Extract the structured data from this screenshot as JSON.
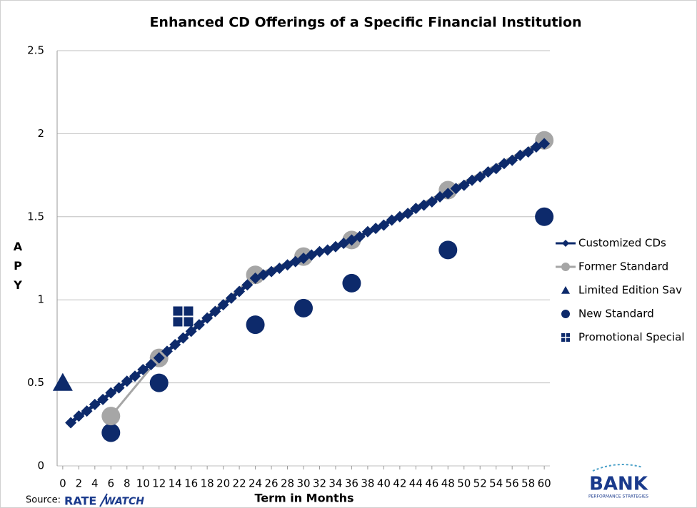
{
  "chart_data": {
    "type": "line",
    "title": "Enhanced CD Offerings of a Specific Financial Institution",
    "x_label": "Term in Months",
    "y_label": "APY",
    "source_label": "Source:",
    "source_logo": [
      "RATE",
      "WATCH"
    ],
    "brand_logo": [
      "BANK",
      "PERFORMANCE STRATEGIES"
    ],
    "xlim": [
      -0.7,
      60.7
    ],
    "xticks": [
      0,
      2,
      4,
      6,
      8,
      10,
      12,
      14,
      16,
      18,
      20,
      22,
      24,
      26,
      28,
      30,
      32,
      34,
      36,
      38,
      40,
      42,
      44,
      46,
      48,
      50,
      52,
      54,
      56,
      58,
      60
    ],
    "ylim": [
      0,
      2.5
    ],
    "yticks": [
      0,
      0.5,
      1,
      1.5,
      2,
      2.5
    ],
    "grid": true,
    "legend": "right",
    "series": [
      {
        "name": "Customized CDs",
        "color": "#0d2a6b",
        "marker": "diamond",
        "line": true,
        "x": [
          1,
          2,
          3,
          4,
          5,
          6,
          7,
          8,
          9,
          10,
          11,
          12,
          13,
          14,
          15,
          16,
          17,
          18,
          19,
          20,
          21,
          22,
          23,
          24,
          25,
          26,
          27,
          28,
          29,
          30,
          31,
          32,
          33,
          34,
          35,
          36,
          37,
          38,
          39,
          40,
          41,
          42,
          43,
          44,
          45,
          46,
          47,
          48,
          49,
          50,
          51,
          52,
          53,
          54,
          55,
          56,
          57,
          58,
          59,
          60
        ],
        "values": [
          0.26,
          0.3,
          0.33,
          0.37,
          0.4,
          0.44,
          0.47,
          0.51,
          0.54,
          0.58,
          0.61,
          0.65,
          0.69,
          0.73,
          0.77,
          0.81,
          0.85,
          0.89,
          0.93,
          0.97,
          1.01,
          1.05,
          1.09,
          1.13,
          1.15,
          1.17,
          1.19,
          1.21,
          1.23,
          1.25,
          1.27,
          1.29,
          1.3,
          1.32,
          1.34,
          1.36,
          1.38,
          1.41,
          1.43,
          1.45,
          1.48,
          1.5,
          1.52,
          1.55,
          1.57,
          1.59,
          1.62,
          1.64,
          1.67,
          1.69,
          1.72,
          1.74,
          1.77,
          1.79,
          1.82,
          1.84,
          1.87,
          1.89,
          1.92,
          1.94
        ]
      },
      {
        "name": "Former Standard",
        "color": "#a6a6a6",
        "marker": "circle",
        "line": true,
        "x": [
          6,
          12,
          24,
          30,
          36,
          48,
          60
        ],
        "values": [
          0.3,
          0.65,
          1.15,
          1.26,
          1.36,
          1.66,
          1.96
        ]
      },
      {
        "name": "Limited Edition Sav",
        "color": "#0d2a6b",
        "marker": "triangle",
        "line": false,
        "x": [
          0
        ],
        "values": [
          0.5
        ]
      },
      {
        "name": "New Standard",
        "color": "#0d2a6b",
        "marker": "circle",
        "line": false,
        "x": [
          6,
          12,
          24,
          30,
          36,
          48,
          60
        ],
        "values": [
          0.2,
          0.5,
          0.85,
          0.95,
          1.1,
          1.3,
          1.5
        ]
      },
      {
        "name": "Promotional Special",
        "color": "#0d2a6b",
        "marker": "square-plus",
        "line": false,
        "x": [
          15
        ],
        "values": [
          0.9
        ]
      }
    ]
  }
}
